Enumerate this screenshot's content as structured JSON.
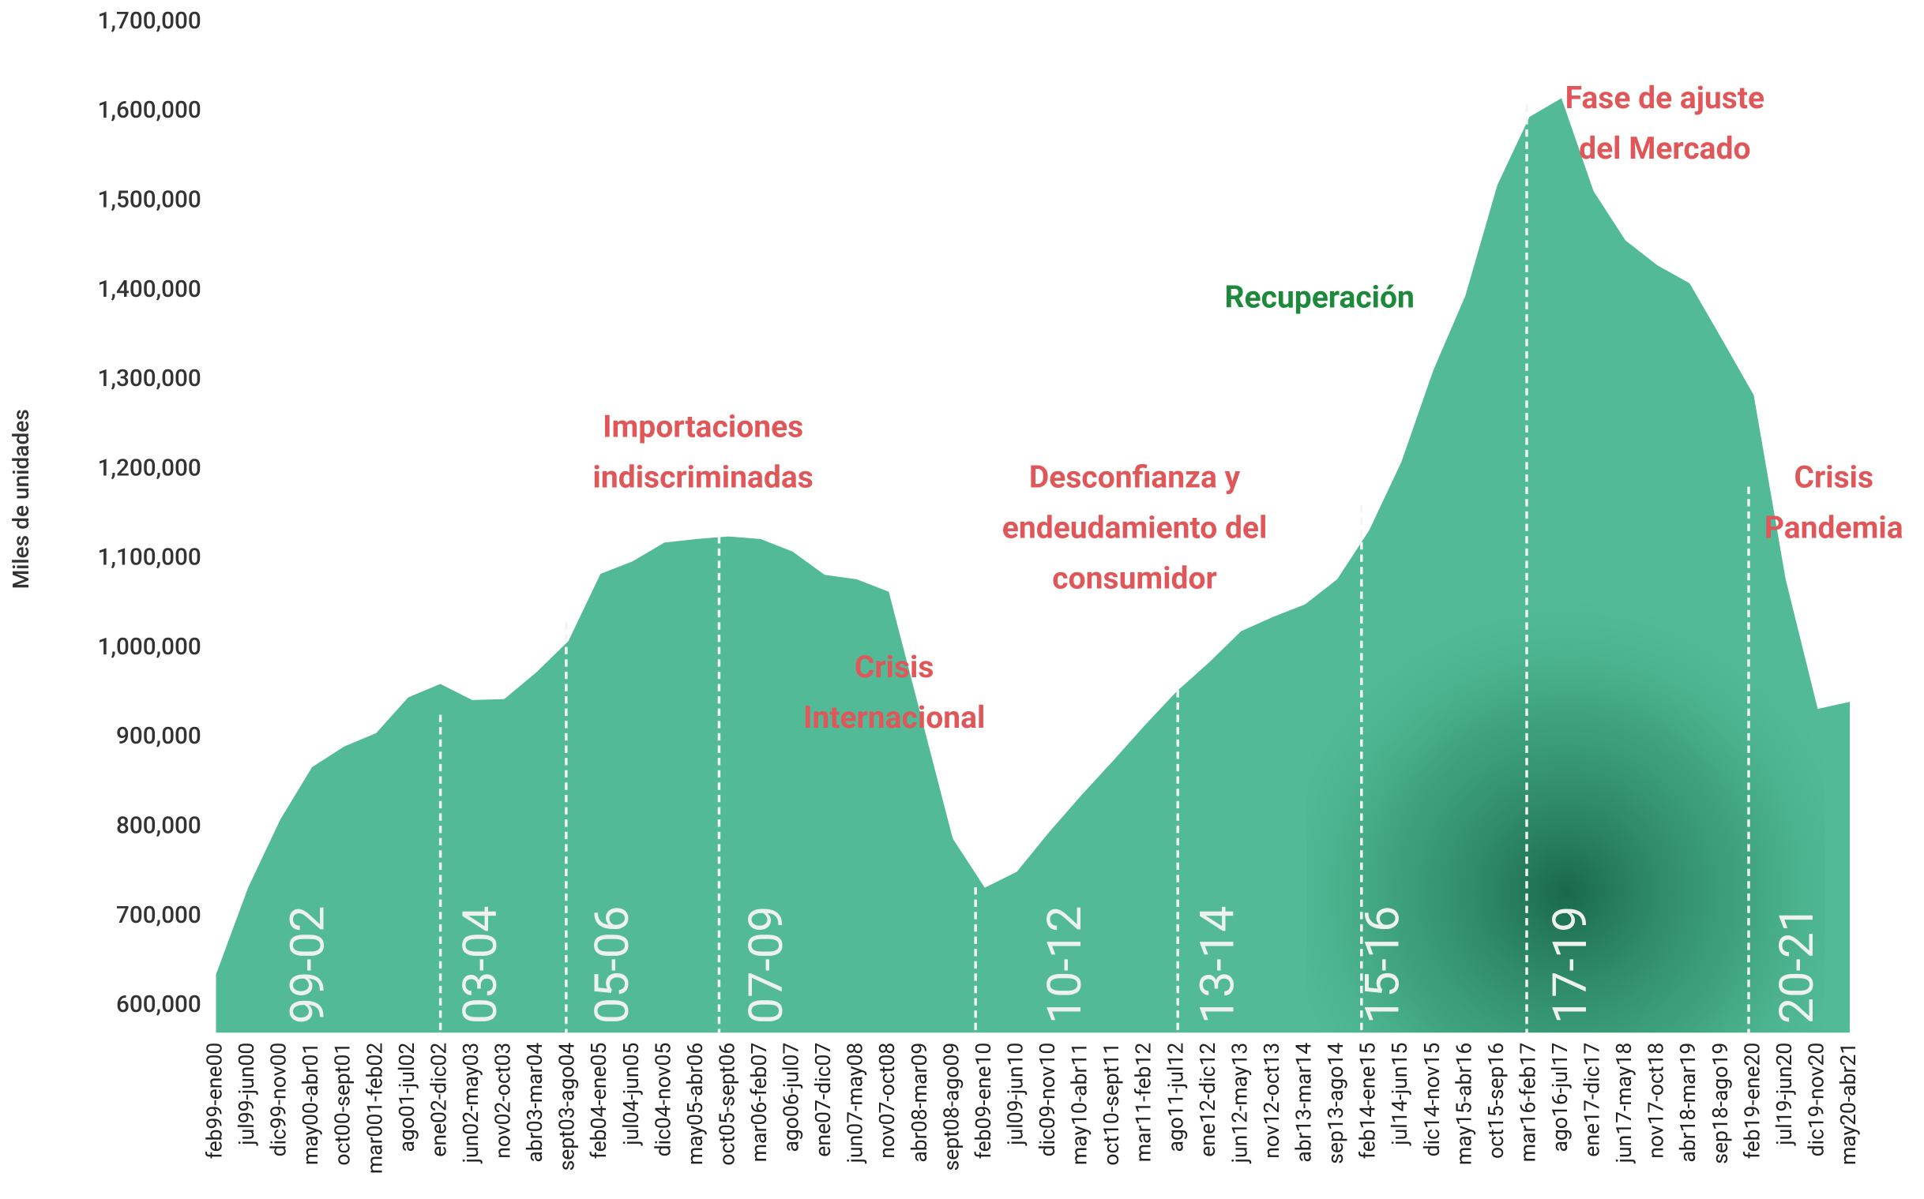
{
  "chart_data": {
    "type": "area",
    "y_label": "Miles de unidades",
    "color": "#52ba97",
    "categories": [
      "feb99-ene00",
      "jul99-jun00",
      "dic99-nov00",
      "may00-abr01",
      "oct00-sept01",
      "mar001-feb02",
      "ago01-jul02",
      "ene02-dic02",
      "jun02-may03",
      "nov02-oct03",
      "abr03-mar04",
      "sept03-ago04",
      "feb04-ene05",
      "jul04-jun05",
      "dic04-nov05",
      "may05-abr06",
      "oct05-sept06",
      "mar06-feb07",
      "ago06-jul07",
      "ene07-dic07",
      "jun07-may08",
      "nov07-oct08",
      "abr08-mar09",
      "sept08-ago09",
      "feb09-ene10",
      "jul09-jun10",
      "dic09-nov10",
      "may10-abr11",
      "oct10-sept11",
      "mar11-feb12",
      "ago11-jul12",
      "ene12-dic12",
      "jun12-may13",
      "nov12-oct13",
      "abr13-mar14",
      "sep13-ago14",
      "feb14-ene15",
      "jul14-jun15",
      "dic14-nov15",
      "may15-abr16",
      "oct15-sep16",
      "mar16-feb17",
      "ago16-jul17",
      "ene17-dic17",
      "jun17-may18",
      "nov17-oct18",
      "abr18-mar19",
      "sep18-ago19",
      "feb19-ene20",
      "jul19-jun20",
      "dic19-nov20",
      "may20-abr21"
    ],
    "values": [
      635000,
      732000,
      808000,
      867000,
      890000,
      905000,
      945000,
      960000,
      942000,
      943000,
      973000,
      1008000,
      1083000,
      1097000,
      1118000,
      1122000,
      1125000,
      1122000,
      1108000,
      1082000,
      1077000,
      1063000,
      925000,
      787000,
      732000,
      750000,
      794000,
      835000,
      874000,
      914000,
      952000,
      984000,
      1019000,
      1035000,
      1049000,
      1077000,
      1132000,
      1208000,
      1311000,
      1394000,
      1518000,
      1594000,
      1615000,
      1511000,
      1456000,
      1428000,
      1408000,
      1346000,
      1283000,
      1077000,
      932000,
      940000
    ],
    "ylim": [
      570000,
      1700000
    ],
    "yticks": [
      {
        "value": 600000,
        "label": "600,000"
      },
      {
        "value": 700000,
        "label": "700,000"
      },
      {
        "value": 800000,
        "label": "800,000"
      },
      {
        "value": 900000,
        "label": "900,000"
      },
      {
        "value": 1000000,
        "label": "1,000,000"
      },
      {
        "value": 1100000,
        "label": "1,100,000"
      },
      {
        "value": 1200000,
        "label": "1,200,000"
      },
      {
        "value": 1300000,
        "label": "1,300,000"
      },
      {
        "value": 1400000,
        "label": "1,400,000"
      },
      {
        "value": 1500000,
        "label": "1,500,000"
      },
      {
        "value": 1600000,
        "label": "1,600,000"
      },
      {
        "value": 1700000,
        "label": "1,700,000"
      }
    ],
    "periods": [
      "99-02",
      "03-04",
      "05-06",
      "07-09",
      "10-12",
      "13-14",
      "15-16",
      "17-19",
      "20-21"
    ],
    "annotations": [
      {
        "lines": [
          "Importaciones",
          "indiscriminadas"
        ]
      },
      {
        "lines": [
          "Crisis",
          "Internacional"
        ]
      },
      {
        "lines": [
          "Desconfianza y",
          "endeudamiento del",
          "consumidor"
        ]
      },
      {
        "lines": [
          "Recuperación"
        ]
      },
      {
        "lines": [
          "Fase de ajuste",
          "del Mercado"
        ]
      },
      {
        "lines": [
          "Crisis",
          "Pandemia"
        ]
      }
    ]
  }
}
